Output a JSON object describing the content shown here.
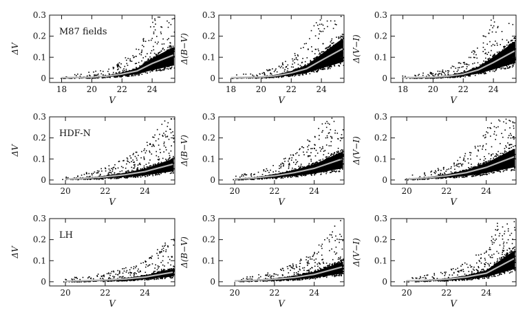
{
  "chart_data": [
    {
      "type": "scatter",
      "field": "M87 fields",
      "xlabel": "V",
      "ylabel": "ΔV",
      "xlim": [
        17.2,
        25.5
      ],
      "ylim": [
        -0.02,
        0.3
      ],
      "xticks": [
        18,
        20,
        22,
        24
      ],
      "yticks": [
        0,
        0.1,
        0.2,
        0.3
      ],
      "ytick_labels": [
        "0",
        "0.1",
        "0.2",
        "0.3"
      ],
      "trend_curve": {
        "x": [
          18,
          20,
          21,
          22,
          23,
          24,
          25.4
        ],
        "y": [
          0.003,
          0.005,
          0.01,
          0.02,
          0.035,
          0.07,
          0.11
        ]
      }
    },
    {
      "type": "scatter",
      "field": "",
      "xlabel": "V",
      "ylabel": "Δ(B−V)",
      "xlim": [
        17.2,
        25.5
      ],
      "ylim": [
        -0.02,
        0.3
      ],
      "xticks": [
        18,
        20,
        22,
        24
      ],
      "yticks": [
        0,
        0.1,
        0.2,
        0.3
      ],
      "ytick_labels": [
        "0",
        "0.1",
        "0.2",
        "0.3"
      ],
      "trend_curve": {
        "x": [
          18,
          20,
          21,
          22,
          23,
          24,
          25.4
        ],
        "y": [
          0.003,
          0.006,
          0.012,
          0.025,
          0.045,
          0.085,
          0.14
        ]
      }
    },
    {
      "type": "scatter",
      "field": "",
      "xlabel": "V",
      "ylabel": "Δ(V−I)",
      "xlim": [
        17.2,
        25.5
      ],
      "ylim": [
        -0.02,
        0.3
      ],
      "xticks": [
        18,
        20,
        22,
        24
      ],
      "yticks": [
        0,
        0.1,
        0.2,
        0.3
      ],
      "ytick_labels": [
        "0",
        "0.1",
        "0.2",
        "0.3"
      ],
      "trend_curve": {
        "x": [
          18,
          20,
          21,
          22,
          23,
          24,
          25.4
        ],
        "y": [
          0.003,
          0.005,
          0.01,
          0.02,
          0.04,
          0.075,
          0.13
        ]
      }
    },
    {
      "type": "scatter",
      "field": "HDF-N",
      "xlabel": "V",
      "ylabel": "ΔV",
      "xlim": [
        19.2,
        25.5
      ],
      "ylim": [
        -0.02,
        0.3
      ],
      "xticks": [
        20,
        22,
        24
      ],
      "yticks": [
        0,
        0.1,
        0.2,
        0.3
      ],
      "ytick_labels": [
        "0",
        "0.1",
        "0.2",
        "0.3"
      ],
      "trend_curve": {
        "x": [
          20,
          21,
          22,
          23,
          24,
          25.4
        ],
        "y": [
          0.004,
          0.008,
          0.015,
          0.025,
          0.04,
          0.075
        ]
      }
    },
    {
      "type": "scatter",
      "field": "",
      "xlabel": "V",
      "ylabel": "Δ(B−V)",
      "xlim": [
        19.2,
        25.5
      ],
      "ylim": [
        -0.02,
        0.3
      ],
      "xticks": [
        20,
        22,
        24
      ],
      "yticks": [
        0,
        0.1,
        0.2,
        0.3
      ],
      "ytick_labels": [
        "0",
        "0.1",
        "0.2",
        "0.3"
      ],
      "trend_curve": {
        "x": [
          20,
          21,
          22,
          23,
          24,
          25.4
        ],
        "y": [
          0.005,
          0.01,
          0.02,
          0.035,
          0.055,
          0.1
        ]
      }
    },
    {
      "type": "scatter",
      "field": "",
      "xlabel": "V",
      "ylabel": "Δ(V−I)",
      "xlim": [
        19.2,
        25.5
      ],
      "ylim": [
        -0.02,
        0.3
      ],
      "xticks": [
        20,
        22,
        24
      ],
      "yticks": [
        0,
        0.1,
        0.2,
        0.3
      ],
      "ytick_labels": [
        "0",
        "0.1",
        "0.2",
        "0.3"
      ],
      "trend_curve": {
        "x": [
          20,
          21,
          22,
          23,
          24,
          25.4
        ],
        "y": [
          0.005,
          0.01,
          0.02,
          0.035,
          0.06,
          0.11
        ]
      }
    },
    {
      "type": "scatter",
      "field": "LH",
      "xlabel": "V",
      "ylabel": "ΔV",
      "xlim": [
        19.2,
        25.5
      ],
      "ylim": [
        -0.02,
        0.3
      ],
      "xticks": [
        20,
        22,
        24
      ],
      "yticks": [
        0,
        0.1,
        0.2,
        0.3
      ],
      "ytick_labels": [
        "0",
        "0.1",
        "0.2",
        "0.3"
      ],
      "trend_curve": {
        "x": [
          20,
          21,
          22,
          23,
          24,
          25.4
        ],
        "y": [
          0.003,
          0.005,
          0.008,
          0.013,
          0.022,
          0.045
        ]
      }
    },
    {
      "type": "scatter",
      "field": "",
      "xlabel": "V",
      "ylabel": "Δ(B−V)",
      "xlim": [
        19.2,
        25.5
      ],
      "ylim": [
        -0.02,
        0.3
      ],
      "xticks": [
        20,
        22,
        24
      ],
      "yticks": [
        0,
        0.1,
        0.2,
        0.3
      ],
      "ytick_labels": [
        "0",
        "0.1",
        "0.2",
        "0.3"
      ],
      "trend_curve": {
        "x": [
          20,
          21,
          22,
          23,
          24,
          25.4
        ],
        "y": [
          0.004,
          0.007,
          0.012,
          0.02,
          0.035,
          0.07
        ]
      }
    },
    {
      "type": "scatter",
      "field": "",
      "xlabel": "V",
      "ylabel": "Δ(V−I)",
      "xlim": [
        19.2,
        25.5
      ],
      "ylim": [
        -0.02,
        0.3
      ],
      "xticks": [
        20,
        22,
        24
      ],
      "yticks": [
        0,
        0.1,
        0.2,
        0.3
      ],
      "ytick_labels": [
        "0",
        "0.1",
        "0.2",
        "0.3"
      ],
      "trend_curve": {
        "x": [
          20,
          21,
          22,
          23,
          24,
          25.4
        ],
        "y": [
          0.004,
          0.007,
          0.012,
          0.022,
          0.04,
          0.11
        ]
      }
    }
  ],
  "colors": {
    "points": "#000000",
    "trend": "#b8b8b8",
    "axes": "#111111"
  }
}
